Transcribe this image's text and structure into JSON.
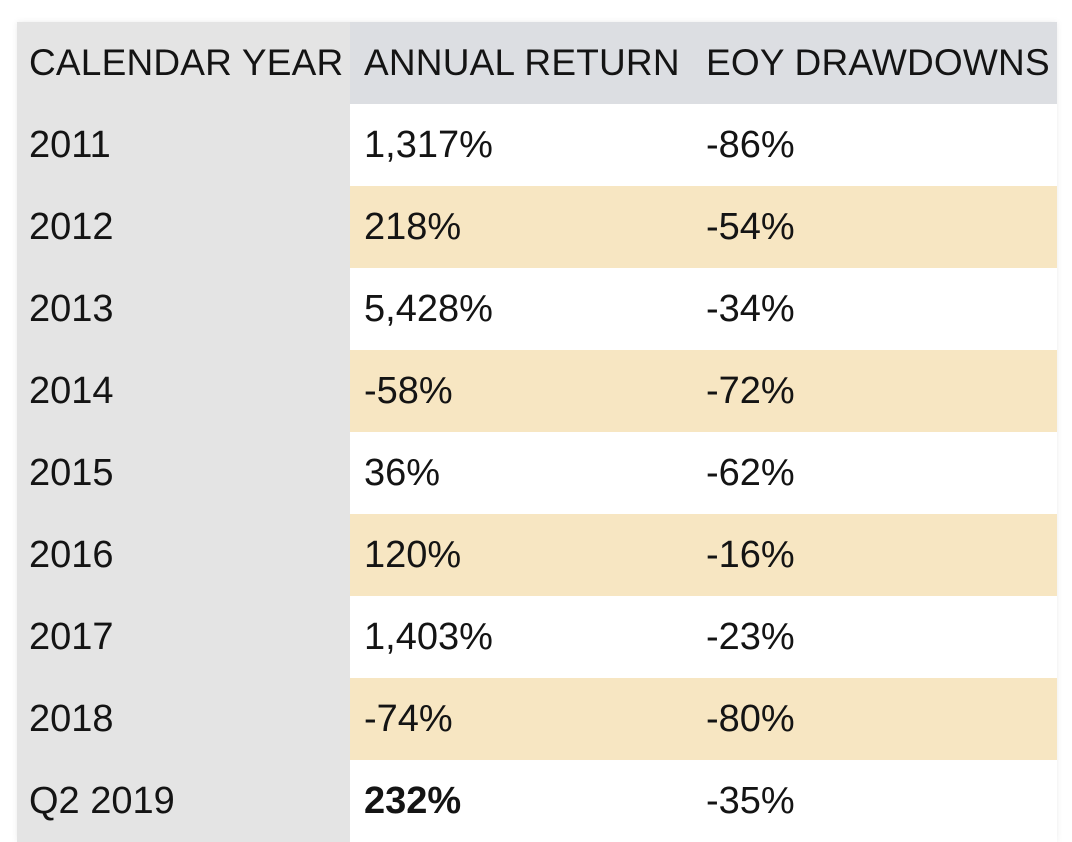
{
  "table": {
    "headers": {
      "year": "CALENDAR YEAR",
      "annual_return": "ANNUAL RETURN",
      "eoy_drawdowns": "EOY DRAWDOWNS"
    },
    "rows": [
      {
        "year": "2011",
        "annual_return": "1,317%",
        "eoy_drawdowns": "-86%"
      },
      {
        "year": "2012",
        "annual_return": "218%",
        "eoy_drawdowns": "-54%"
      },
      {
        "year": "2013",
        "annual_return": "5,428%",
        "eoy_drawdowns": "-34%"
      },
      {
        "year": "2014",
        "annual_return": "-58%",
        "eoy_drawdowns": "-72%"
      },
      {
        "year": "2015",
        "annual_return": "36%",
        "eoy_drawdowns": "-62%"
      },
      {
        "year": "2016",
        "annual_return": "120%",
        "eoy_drawdowns": "-16%"
      },
      {
        "year": "2017",
        "annual_return": "1,403%",
        "eoy_drawdowns": "-23%"
      },
      {
        "year": "2018",
        "annual_return": "-74%",
        "eoy_drawdowns": "-80%"
      },
      {
        "year": "Q2 2019",
        "annual_return": "232%",
        "eoy_drawdowns": "-35%"
      }
    ]
  },
  "colors": {
    "header_bg": "#dcdee2",
    "year_column_bg": "#e4e4e4",
    "band_row_bg": "#f7e6c2",
    "plain_row_bg": "#ffffff"
  }
}
